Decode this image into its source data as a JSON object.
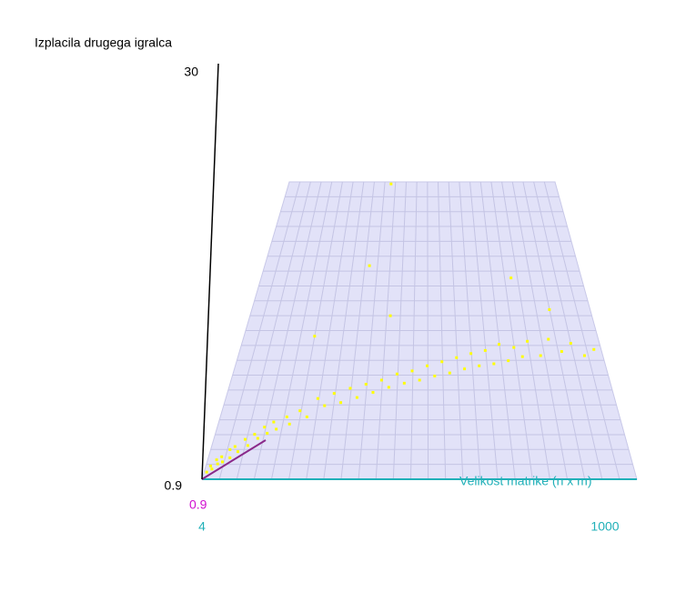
{
  "chart_data": {
    "type": "scatter",
    "ylabel": "Izplacila drugega igralca",
    "xlabel": "Velikost matrike (n x m)",
    "xlim": [
      4,
      1000
    ],
    "xticks": [
      4,
      1000
    ],
    "ylim": [
      0.9,
      30
    ],
    "yticks": [
      0.9,
      30
    ],
    "zlim": [
      0.9,
      30
    ],
    "zticks": [
      0.9
    ],
    "series": [
      {
        "color": "#ffff00",
        "x": [
          10,
          15,
          20,
          25,
          30,
          35,
          40,
          50,
          55,
          60,
          70,
          80,
          90,
          100,
          110,
          120,
          130,
          140,
          150,
          170,
          180,
          200,
          220,
          240,
          260,
          280,
          300,
          320,
          340,
          360,
          380,
          400,
          420,
          440,
          460,
          480,
          500,
          520,
          540,
          560,
          580,
          600,
          620,
          640,
          660,
          680,
          700,
          720,
          740,
          760,
          780,
          800,
          830,
          860,
          890,
          920,
          950,
          980,
          386,
          337,
          781,
          413,
          203,
          880
        ],
        "values": [
          1.6,
          2.2,
          1.9,
          2.8,
          2.4,
          3.1,
          2.6,
          3.8,
          3.0,
          4.1,
          3.6,
          4.8,
          4.2,
          5.3,
          4.9,
          6.0,
          5.4,
          6.5,
          5.8,
          7.0,
          6.3,
          7.6,
          7.0,
          8.8,
          8.1,
          9.3,
          8.4,
          9.8,
          8.9,
          10.2,
          9.4,
          10.6,
          9.9,
          11.2,
          10.3,
          11.5,
          10.6,
          12.0,
          11.0,
          12.4,
          11.3,
          12.8,
          11.7,
          13.2,
          12.0,
          13.5,
          12.2,
          14.1,
          12.5,
          13.8,
          12.9,
          14.4,
          13.0,
          14.6,
          13.4,
          14.2,
          13.0,
          13.6,
          29.8,
          21.8,
          20.6,
          16.9,
          14.9,
          17.5
        ]
      }
    ]
  }
}
